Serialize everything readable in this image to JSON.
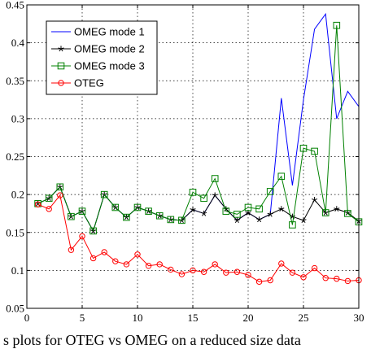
{
  "caption": "s plots for OTEG vs OMEG on a reduced size data",
  "chart_data": {
    "type": "line",
    "title": "",
    "xlabel": "",
    "ylabel": "",
    "xlim": [
      0,
      30
    ],
    "ylim": [
      0.05,
      0.45
    ],
    "grid": true,
    "legend_position": "top-left",
    "x_ticks": [
      "0",
      "5",
      "10",
      "15",
      "20",
      "25",
      "30"
    ],
    "y_ticks": [
      "0.05",
      "0.1",
      "0.15",
      "0.2",
      "0.25",
      "0.3",
      "0.35",
      "0.4",
      "0.45"
    ],
    "x": [
      1,
      2,
      3,
      4,
      5,
      6,
      7,
      8,
      9,
      10,
      11,
      12,
      13,
      14,
      15,
      16,
      17,
      18,
      19,
      20,
      21,
      22,
      23,
      24,
      25,
      26,
      27,
      28,
      29,
      30
    ],
    "series": [
      {
        "name": "OMEG mode 1",
        "color": "#0000ff",
        "marker": "none",
        "values": [
          0.188,
          0.195,
          0.21,
          0.171,
          0.178,
          0.152,
          0.2,
          0.183,
          0.17,
          0.183,
          0.178,
          0.172,
          0.167,
          0.166,
          0.18,
          0.175,
          0.199,
          0.181,
          0.166,
          0.176,
          0.167,
          0.174,
          0.327,
          0.212,
          0.325,
          0.418,
          0.438,
          0.3,
          0.336,
          0.316
        ]
      },
      {
        "name": "OMEG mode 2",
        "color": "#000000",
        "marker": "star",
        "values": [
          0.188,
          0.195,
          0.21,
          0.171,
          0.178,
          0.152,
          0.2,
          0.183,
          0.17,
          0.183,
          0.178,
          0.172,
          0.167,
          0.166,
          0.18,
          0.175,
          0.199,
          0.181,
          0.166,
          0.176,
          0.167,
          0.174,
          0.181,
          0.171,
          0.166,
          0.193,
          0.176,
          0.181,
          0.176,
          0.165
        ]
      },
      {
        "name": "OMEG mode 3",
        "color": "#008000",
        "marker": "square",
        "values": [
          0.188,
          0.195,
          0.21,
          0.171,
          0.178,
          0.152,
          0.2,
          0.183,
          0.17,
          0.183,
          0.178,
          0.172,
          0.167,
          0.166,
          0.203,
          0.195,
          0.221,
          0.178,
          0.174,
          0.183,
          0.181,
          0.204,
          0.224,
          0.16,
          0.261,
          0.257,
          0.176,
          0.423,
          0.175,
          0.164
        ]
      },
      {
        "name": "OTEG",
        "color": "#ff0000",
        "marker": "circle",
        "values": [
          0.187,
          0.181,
          0.199,
          0.127,
          0.145,
          0.116,
          0.124,
          0.112,
          0.108,
          0.121,
          0.106,
          0.108,
          0.101,
          0.095,
          0.1,
          0.098,
          0.108,
          0.097,
          0.098,
          0.094,
          0.085,
          0.087,
          0.109,
          0.097,
          0.091,
          0.103,
          0.09,
          0.089,
          0.086,
          0.087
        ]
      }
    ]
  }
}
